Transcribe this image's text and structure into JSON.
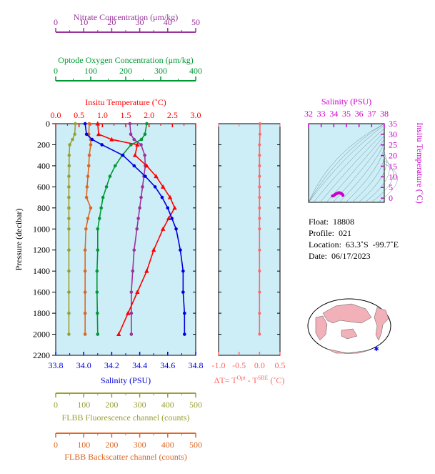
{
  "colors": {
    "temperature": "#ff0000",
    "salinity": "#0000dd",
    "oxygen": "#009933",
    "nitrate": "#993399",
    "fluorescence": "#99a033",
    "backscatter": "#dd6622",
    "delta_t": "#ff6666",
    "ts_axis": "#cc00cc",
    "panel_bg": "#cdeef7"
  },
  "axes_labels": {
    "nitrate": "Nitrate Concentration (μm/kg)",
    "oxygen": "Optode Oxygen Concentration (μm/kg)",
    "temperature": "Insitu Temperature (˚C)",
    "salinity": "Salinity (PSU)",
    "pressure": "Pressure (decibar)",
    "fluorescence": "FLBB Fluorescence channel (counts)",
    "backscatter": "FLBB Backscatter channel (counts)",
    "ts_salinity": "Salinity (PSU)",
    "ts_temperature": "Insitu Temperature (˚C)",
    "delta_t": "ΔT= T",
    "delta_t_sup1": "Opt",
    "delta_t_mid": " - T",
    "delta_t_sup2": "SBE",
    "delta_t_tail": " (˚C)"
  },
  "info": {
    "float": "Float:  18808",
    "profile": "Profile:  021",
    "location": "Location:  63.3˚S  -99.7˚E",
    "date": "Date:  06/17/2023"
  },
  "chart_data": [
    {
      "type": "line",
      "panel": "profiles",
      "grid": false,
      "ylim": [
        2200,
        0
      ],
      "yticks": [
        0,
        200,
        400,
        600,
        800,
        1000,
        1200,
        1400,
        1600,
        1800,
        2000,
        2200
      ],
      "pressure": [
        0,
        100,
        150,
        200,
        300,
        400,
        500,
        600,
        700,
        800,
        900,
        1000,
        1200,
        1400,
        1600,
        1800,
        2000
      ],
      "series": [
        {
          "name": "Temperature",
          "key": "temperature",
          "unit": "˚C",
          "xlim": [
            0.0,
            3.0
          ],
          "xticks": [
            "0.0",
            "0.5",
            "1.0",
            "1.5",
            "2.0",
            "2.5",
            "3.0"
          ],
          "values": [
            0.9,
            0.92,
            1.2,
            1.75,
            1.7,
            1.95,
            2.15,
            2.3,
            2.45,
            2.55,
            2.42,
            2.3,
            2.1,
            1.95,
            1.75,
            1.55,
            1.35
          ]
        },
        {
          "name": "Salinity",
          "key": "salinity",
          "unit": "PSU",
          "xlim": [
            33.8,
            34.8
          ],
          "xticks": [
            "33.8",
            "34.0",
            "34.2",
            "34.4",
            "34.6",
            "34.8"
          ],
          "values": [
            34.01,
            34.02,
            34.06,
            34.13,
            34.28,
            34.36,
            34.44,
            34.51,
            34.56,
            34.6,
            34.63,
            34.66,
            34.69,
            34.71,
            34.71,
            34.72,
            34.72
          ]
        },
        {
          "name": "Oxygen",
          "key": "oxygen",
          "unit": "μm/kg",
          "xlim": [
            0,
            400
          ],
          "xticks": [
            "0",
            "100",
            "200",
            "300",
            "400"
          ],
          "values": [
            260,
            255,
            245,
            215,
            190,
            170,
            155,
            145,
            135,
            130,
            125,
            120,
            120,
            118,
            118,
            119,
            120
          ]
        },
        {
          "name": "Nitrate",
          "key": "nitrate",
          "unit": "μm/kg",
          "xlim": [
            0,
            50
          ],
          "xticks": [
            "0",
            "10",
            "20",
            "30",
            "40",
            "50"
          ],
          "values": [
            26.5,
            26.8,
            28.0,
            30.5,
            31.8,
            32.0,
            31.5,
            31.0,
            30.5,
            30.0,
            29.5,
            29.0,
            28.0,
            27.5,
            27.0,
            27.0,
            27.0
          ]
        },
        {
          "name": "Fluorescence",
          "key": "fluorescence",
          "unit": "counts",
          "xlim": [
            0,
            500
          ],
          "xticks": [
            "0",
            "100",
            "200",
            "300",
            "400",
            "500"
          ],
          "values": [
            70,
            68,
            60,
            50,
            48,
            48,
            47,
            47,
            47,
            47,
            47,
            47,
            47,
            47,
            47,
            47,
            47
          ]
        },
        {
          "name": "Backscatter",
          "key": "backscatter",
          "unit": "counts",
          "xlim": [
            0,
            500
          ],
          "xticks": [
            "0",
            "100",
            "200",
            "300",
            "400",
            "500"
          ],
          "values": [
            120,
            118,
            125,
            125,
            120,
            118,
            115,
            112,
            110,
            125,
            115,
            108,
            105,
            105,
            105,
            105,
            105
          ]
        }
      ]
    },
    {
      "type": "line",
      "panel": "delta_t",
      "grid": false,
      "xlim": [
        -1.0,
        0.5
      ],
      "xticks": [
        "-1.0",
        "-0.5",
        "0.0",
        "0.5"
      ],
      "ylim": [
        2200,
        0
      ],
      "pressure": [
        0,
        100,
        200,
        300,
        400,
        500,
        600,
        700,
        800,
        900,
        1000,
        1200,
        1400,
        1600,
        1800,
        2000
      ],
      "values": [
        0.01,
        0.01,
        0.0,
        0.0,
        0.0,
        0.0,
        0.0,
        0.0,
        0.0,
        0.0,
        0.0,
        0.0,
        0.0,
        0.0,
        0.0,
        0.0
      ]
    },
    {
      "type": "scatter",
      "panel": "ts_diagram",
      "grid": false,
      "xlim": [
        32,
        38
      ],
      "xticks": [
        "32",
        "33",
        "34",
        "35",
        "36",
        "37",
        "38"
      ],
      "ylim": [
        -2,
        35
      ],
      "yticks": [
        "0",
        "5",
        "10",
        "15",
        "20",
        "25",
        "30",
        "35"
      ],
      "salinity": [
        33.9,
        34.0,
        34.1,
        34.2,
        34.3,
        34.4,
        34.5,
        34.6,
        34.7,
        34.72
      ],
      "temperature": [
        1.0,
        1.2,
        1.7,
        2.0,
        2.3,
        2.5,
        2.4,
        2.1,
        1.6,
        1.3
      ]
    }
  ]
}
